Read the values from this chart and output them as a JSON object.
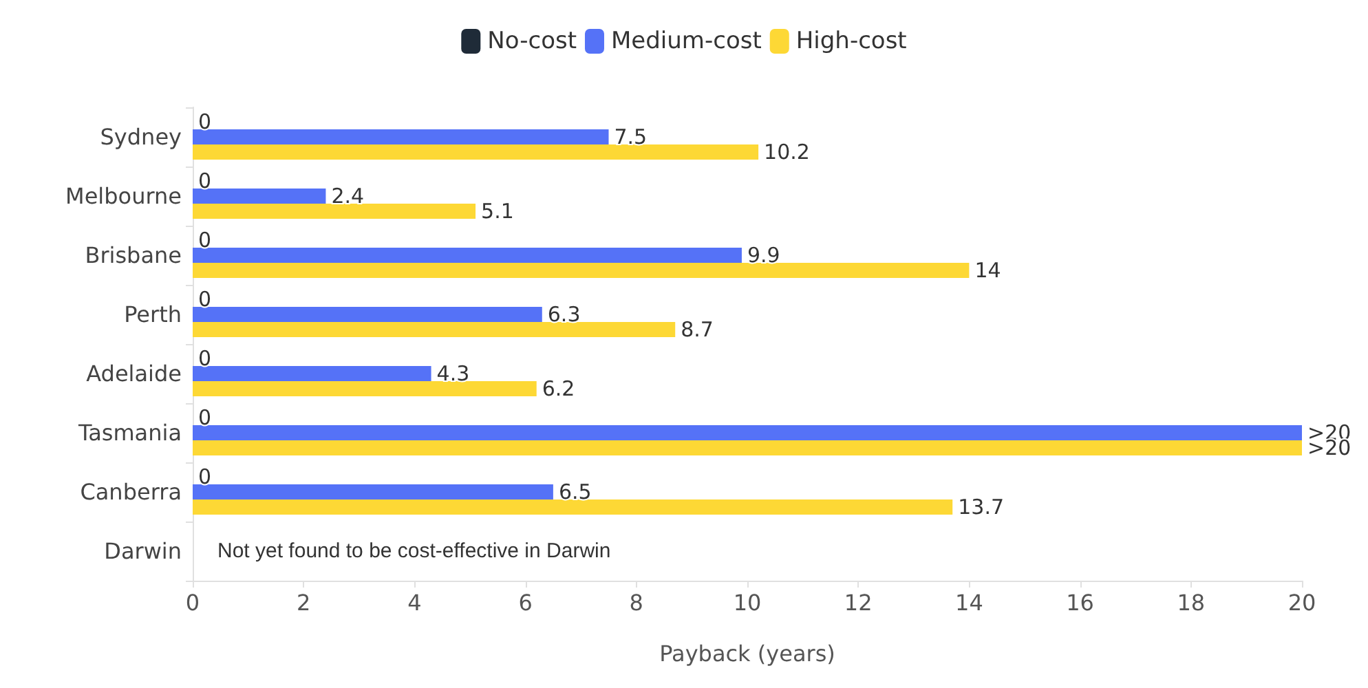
{
  "chart_data": {
    "type": "bar",
    "orientation": "horizontal",
    "xlabel": "Payback (years)",
    "categories": [
      "Sydney",
      "Melbourne",
      "Brisbane",
      "Perth",
      "Adelaide",
      "Tasmania",
      "Canberra",
      "Darwin"
    ],
    "series": [
      {
        "name": "No-cost",
        "color": "#1f2b38",
        "values": [
          0,
          0,
          0,
          0,
          0,
          0,
          0,
          null
        ],
        "value_labels": [
          "0",
          "0",
          "0",
          "0",
          "0",
          "0",
          "0",
          null
        ]
      },
      {
        "name": "Medium-cost",
        "color": "#5572f7",
        "values": [
          7.5,
          2.4,
          9.9,
          6.3,
          4.3,
          20,
          6.5,
          null
        ],
        "value_labels": [
          "7.5",
          "2.4",
          "9.9",
          "6.3",
          "4.3",
          ">20",
          "6.5",
          null
        ]
      },
      {
        "name": "High-cost",
        "color": "#fdd835",
        "values": [
          10.2,
          5.1,
          14,
          8.7,
          6.2,
          20,
          13.7,
          null
        ],
        "value_labels": [
          "10.2",
          "5.1",
          "14",
          "8.7",
          "6.2",
          ">20",
          "13.7",
          null
        ]
      }
    ],
    "xlim": [
      0,
      20
    ],
    "xticks": [
      0,
      2,
      4,
      6,
      8,
      10,
      12,
      14,
      16,
      18,
      20
    ],
    "grid": false,
    "legend": "top",
    "annotations": [
      "Not yet found to be cost-effective in Darwin"
    ]
  }
}
